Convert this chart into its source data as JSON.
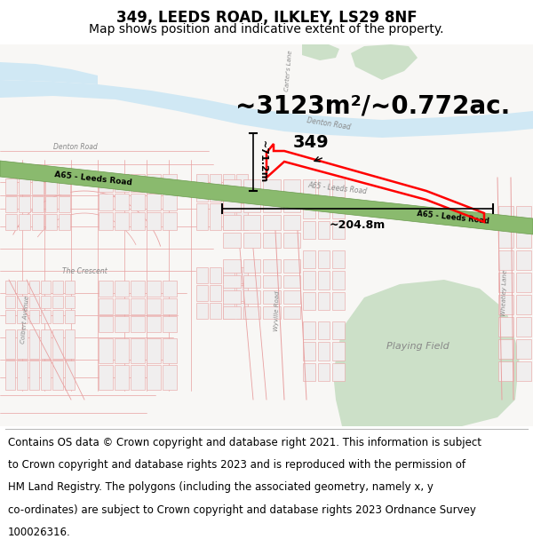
{
  "title": "349, LEEDS ROAD, ILKLEY, LS29 8NF",
  "subtitle": "Map shows position and indicative extent of the property.",
  "area_text": "~3123m²/~0.772ac.",
  "dim1_text": "~71.2m",
  "dim2_text": "~204.8m",
  "label_349": "349",
  "footer_lines": [
    "Contains OS data © Crown copyright and database right 2021. This information is subject",
    "to Crown copyright and database rights 2023 and is reproduced with the permission of",
    "HM Land Registry. The polygons (including the associated geometry, namely x, y",
    "co-ordinates) are subject to Crown copyright and database rights 2023 Ordnance Survey",
    "100026316."
  ],
  "bg_color": "#ffffff",
  "map_bg_color": "#f8f7f5",
  "road_color": "#e8a0a0",
  "road_outline_color": "#cc4444",
  "water_color": "#d0e8f4",
  "green_color": "#cce0c8",
  "green_dark_color": "#a8c8a0",
  "a65_color": "#8aba6e",
  "a65_outline_color": "#6a9a4e",
  "property_color": "#ff0000",
  "dim_line_color": "#000000",
  "road_label_color": "#888888",
  "street_outline_color": "#ddbbbb",
  "title_fontsize": 12,
  "subtitle_fontsize": 10,
  "area_fontsize": 20,
  "footer_fontsize": 8.5
}
